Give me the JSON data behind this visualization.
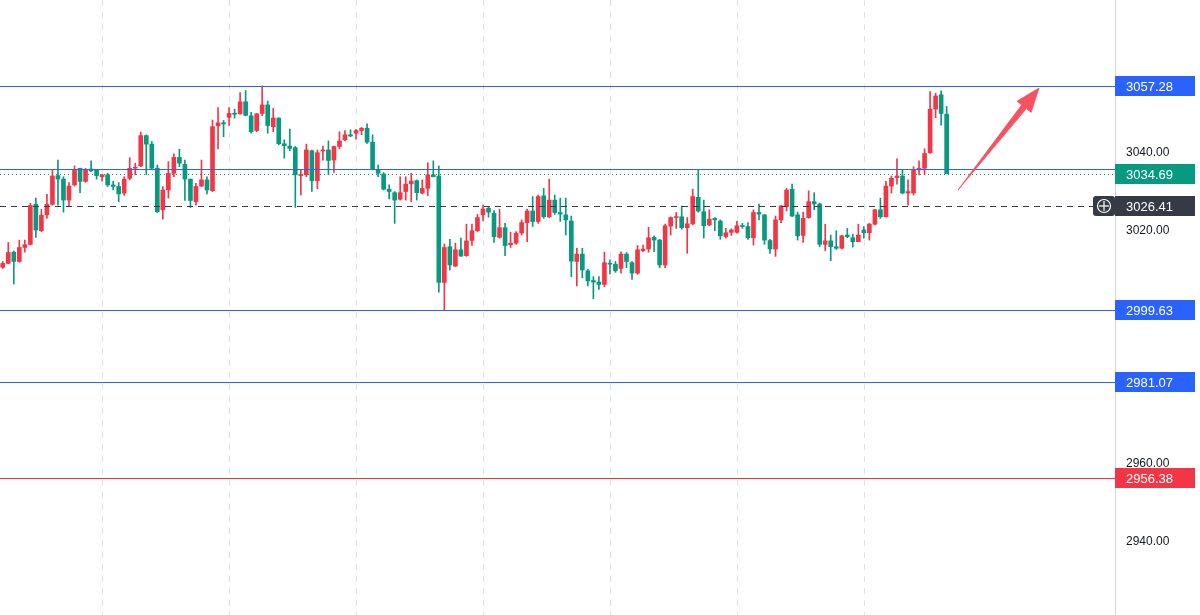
{
  "chart_data": {
    "type": "candlestick",
    "categories": [
      null,
      null,
      null,
      null,
      null,
      null,
      null,
      null,
      null,
      null,
      null,
      null,
      null,
      null,
      null,
      null,
      null,
      null,
      null,
      null,
      null,
      null,
      null,
      null,
      null,
      null,
      null,
      null,
      null,
      null,
      null,
      null,
      null,
      null,
      null,
      null,
      null,
      null,
      null,
      null,
      null,
      null,
      null,
      null,
      null,
      null,
      null,
      null,
      null,
      null,
      null,
      null,
      null,
      null,
      null,
      null,
      null,
      null,
      null,
      null,
      null,
      null,
      null,
      null,
      null,
      null,
      null,
      null,
      null,
      null,
      null,
      null,
      null,
      null,
      null,
      null,
      null,
      null,
      null,
      null,
      null,
      null,
      null,
      null,
      null,
      null,
      null,
      null,
      null,
      null,
      null,
      null,
      null,
      null,
      null,
      null,
      null,
      null,
      null,
      null,
      null,
      null,
      null,
      null,
      null,
      null,
      null,
      null,
      null,
      null,
      null,
      null,
      null,
      null,
      null,
      null,
      null,
      null,
      null,
      null,
      null,
      null,
      null,
      null,
      null,
      null,
      null,
      null,
      null,
      null,
      null,
      null,
      null,
      null,
      null,
      null,
      null,
      null,
      null,
      null,
      null,
      null,
      null,
      null,
      null,
      null,
      null,
      null,
      null,
      null,
      null,
      null,
      null,
      null,
      null,
      null,
      null,
      null,
      null,
      null,
      null,
      null,
      null,
      null,
      null,
      null,
      null,
      null,
      null,
      null,
      null,
      null,
      null,
      null,
      null,
      null,
      null,
      null,
      null,
      null,
      null,
      null,
      null,
      null,
      null,
      null,
      null,
      null,
      null,
      null,
      null,
      null,
      null,
      null,
      null,
      null,
      null,
      null,
      null,
      null,
      null,
      null
    ],
    "ohlc": [
      [
        3010.6,
        3012.1,
        3010.3,
        3011.6
      ],
      [
        3011.6,
        3017.0,
        3011.5,
        3014.4
      ],
      [
        3014.5,
        3014.8,
        3006.3,
        3012.1
      ],
      [
        3012.1,
        3017.6,
        3011.9,
        3015.7
      ],
      [
        3015.7,
        3017.6,
        3014.5,
        3016.4
      ],
      [
        3016.5,
        3027.1,
        3016.3,
        3026.5
      ],
      [
        3026.8,
        3028.4,
        3018.3,
        3020.2
      ],
      [
        3020.0,
        3025.5,
        3019.8,
        3024.0
      ],
      [
        3024.1,
        3029.4,
        3023.2,
        3026.8
      ],
      [
        3026.8,
        3035.7,
        3026.6,
        3034.1
      ],
      [
        3034.2,
        3038.2,
        3026.6,
        3033.3
      ],
      [
        3033.3,
        3033.9,
        3024.8,
        3027.9
      ],
      [
        3027.9,
        3032.4,
        3026.4,
        3031.5
      ],
      [
        3031.8,
        3036.7,
        3031.5,
        3035.7
      ],
      [
        3036.1,
        3036.1,
        3029.8,
        3032.7
      ],
      [
        3032.7,
        3036.1,
        3032.5,
        3035.8
      ],
      [
        3035.9,
        3038.0,
        3035.2,
        3035.4
      ],
      [
        3035.7,
        3035.8,
        3033.3,
        3034.2
      ],
      [
        3033.9,
        3034.5,
        3032.8,
        3034.4
      ],
      [
        3034.4,
        3034.8,
        3031.4,
        3031.8
      ],
      [
        3031.8,
        3032.7,
        3030.5,
        3031.4
      ],
      [
        3031.4,
        3032.4,
        3027.5,
        3029.5
      ],
      [
        3029.7,
        3033.9,
        3029.1,
        3033.3
      ],
      [
        3033.5,
        3038.8,
        3033.1,
        3036.1
      ],
      [
        3036.1,
        3037.4,
        3034.4,
        3036.3
      ],
      [
        3036.7,
        3045.4,
        3036.5,
        3044.5
      ],
      [
        3044.5,
        3044.7,
        3034.5,
        3042.3
      ],
      [
        3042.3,
        3043.0,
        3035.9,
        3036.1
      ],
      [
        3036.1,
        3036.9,
        3024.7,
        3024.9
      ],
      [
        3025.4,
        3031.4,
        3023.0,
        3030.5
      ],
      [
        3030.5,
        3037.8,
        3028.4,
        3034.8
      ],
      [
        3034.8,
        3039.8,
        3033.9,
        3038.9
      ],
      [
        3038.9,
        3041.0,
        3036.5,
        3037.4
      ],
      [
        3037.1,
        3038.2,
        3027.8,
        3033.3
      ],
      [
        3033.3,
        3033.3,
        3026.0,
        3027.8
      ],
      [
        3027.5,
        3032.2,
        3026.6,
        3031.4
      ],
      [
        3031.5,
        3038.2,
        3031.4,
        3033.1
      ],
      [
        3033.1,
        3033.9,
        3029.5,
        3030.5
      ],
      [
        3030.3,
        3048.5,
        3030.1,
        3046.8
      ],
      [
        3047.0,
        3051.7,
        3041.1,
        3047.8
      ],
      [
        3047.8,
        3048.4,
        3044.2,
        3047.5
      ],
      [
        3049.2,
        3051.7,
        3047.1,
        3050.2
      ],
      [
        3050.2,
        3051.3,
        3049.0,
        3050.0
      ],
      [
        3050.1,
        3055.6,
        3050.0,
        3053.2
      ],
      [
        3053.2,
        3056.1,
        3049.6,
        3049.7
      ],
      [
        3049.6,
        3050.5,
        3045.1,
        3045.5
      ],
      [
        3045.8,
        3050.2,
        3045.5,
        3050.1
      ],
      [
        3050.2,
        3057.3,
        3049.6,
        3052.4
      ],
      [
        3052.4,
        3053.4,
        3045.1,
        3047.1
      ],
      [
        3046.8,
        3051.5,
        3045.5,
        3049.0
      ],
      [
        3049.0,
        3049.1,
        3042.1,
        3042.4
      ],
      [
        3042.4,
        3043.4,
        3038.7,
        3041.9
      ],
      [
        3041.8,
        3046.2,
        3040.6,
        3041.2
      ],
      [
        3041.4,
        3041.7,
        3026.0,
        3034.4
      ],
      [
        3034.2,
        3035.7,
        3029.2,
        3034.5
      ],
      [
        3034.4,
        3042.3,
        3033.9,
        3040.8
      ],
      [
        3040.6,
        3040.8,
        3030.1,
        3032.9
      ],
      [
        3032.9,
        3040.8,
        3030.8,
        3040.1
      ],
      [
        3040.5,
        3041.8,
        3038.2,
        3040.8
      ],
      [
        3040.8,
        3043.1,
        3034.4,
        3038.1
      ],
      [
        3038.2,
        3041.8,
        3035.0,
        3041.7
      ],
      [
        3041.7,
        3045.5,
        3041.1,
        3043.1
      ],
      [
        3043.4,
        3045.8,
        3043.1,
        3044.7
      ],
      [
        3044.7,
        3046.0,
        3044.2,
        3044.4
      ],
      [
        3045.1,
        3046.1,
        3043.6,
        3045.8
      ],
      [
        3045.8,
        3046.6,
        3044.7,
        3046.4
      ],
      [
        3046.4,
        3047.5,
        3042.5,
        3042.8
      ],
      [
        3042.8,
        3044.7,
        3035.7,
        3035.8
      ],
      [
        3035.8,
        3036.9,
        3033.9,
        3034.8
      ],
      [
        3034.6,
        3035.0,
        3030.5,
        3030.7
      ],
      [
        3030.7,
        3031.8,
        3028.2,
        3030.1
      ],
      [
        3029.8,
        3030.1,
        3021.9,
        3027.9
      ],
      [
        3028.1,
        3033.9,
        3027.9,
        3029.8
      ],
      [
        3030.1,
        3033.9,
        3027.9,
        3032.0
      ],
      [
        3032.1,
        3034.8,
        3027.5,
        3032.8
      ],
      [
        3032.9,
        3033.1,
        3027.9,
        3029.8
      ],
      [
        3029.7,
        3033.1,
        3029.5,
        3030.9
      ],
      [
        3030.9,
        3037.5,
        3029.0,
        3034.4
      ],
      [
        3034.4,
        3038.0,
        3033.9,
        3033.9
      ],
      [
        3034.1,
        3036.7,
        3004.2,
        3006.7
      ],
      [
        3006.7,
        3016.6,
        2999.6,
        3015.7
      ],
      [
        3015.9,
        3017.8,
        3009.9,
        3011.2
      ],
      [
        3010.9,
        3016.8,
        3010.8,
        3015.1
      ],
      [
        3015.1,
        3018.1,
        3013.4,
        3013.5
      ],
      [
        3013.6,
        3021.7,
        3013.4,
        3017.4
      ],
      [
        3017.5,
        3021.7,
        3016.2,
        3020.0
      ],
      [
        3020.0,
        3024.2,
        3019.8,
        3023.4
      ],
      [
        3024.1,
        3026.6,
        3022.6,
        3025.6
      ],
      [
        3025.8,
        3026.2,
        3023.5,
        3024.8
      ],
      [
        3024.5,
        3025.2,
        3017.0,
        3018.5
      ],
      [
        3018.3,
        3025.5,
        3018.1,
        3020.8
      ],
      [
        3020.8,
        3021.9,
        3013.6,
        3016.2
      ],
      [
        3016.4,
        3019.6,
        3015.7,
        3016.8
      ],
      [
        3016.8,
        3019.8,
        3016.5,
        3019.4
      ],
      [
        3019.4,
        3022.8,
        3018.9,
        3022.1
      ],
      [
        3022.1,
        3025.5,
        3017.2,
        3025.1
      ],
      [
        3025.1,
        3028.8,
        3021.1,
        3022.4
      ],
      [
        3022.4,
        3029.2,
        3021.9,
        3028.8
      ],
      [
        3029.0,
        3030.9,
        3023.2,
        3023.6
      ],
      [
        3023.6,
        3033.3,
        3023.4,
        3027.9
      ],
      [
        3027.9,
        3029.2,
        3024.2,
        3024.7
      ],
      [
        3024.7,
        3028.4,
        3022.4,
        3024.3
      ],
      [
        3024.1,
        3028.4,
        3018.9,
        3022.8
      ],
      [
        3022.5,
        3023.8,
        3008.2,
        3012.2
      ],
      [
        3012.1,
        3015.5,
        3005.8,
        3014.0
      ],
      [
        3014.0,
        3015.5,
        3007.9,
        3009.9
      ],
      [
        3009.7,
        3010.1,
        3005.8,
        3007.1
      ],
      [
        3007.2,
        3008.2,
        3002.5,
        3006.8
      ],
      [
        3006.8,
        3008.2,
        3004.9,
        3006.2
      ],
      [
        3006.2,
        3014.5,
        3005.6,
        3011.8
      ],
      [
        3011.6,
        3012.5,
        3008.9,
        3011.4
      ],
      [
        3011.4,
        3012.1,
        3009.3,
        3009.7
      ],
      [
        3010.3,
        3014.6,
        3009.1,
        3014.0
      ],
      [
        3014.0,
        3014.4,
        3010.5,
        3012.1
      ],
      [
        3011.8,
        3012.1,
        3007.5,
        3009.1
      ],
      [
        3009.1,
        3016.2,
        3008.8,
        3015.1
      ],
      [
        3014.9,
        3016.3,
        3014.6,
        3015.3
      ],
      [
        3015.3,
        3020.9,
        3014.5,
        3018.2
      ],
      [
        3018.3,
        3018.7,
        3014.6,
        3017.6
      ],
      [
        3017.6,
        3017.8,
        3010.5,
        3011.2
      ],
      [
        3011.2,
        3021.7,
        3010.5,
        3021.3
      ],
      [
        3021.2,
        3023.6,
        3018.9,
        3023.4
      ],
      [
        3023.4,
        3024.7,
        3020.6,
        3023.6
      ],
      [
        3023.6,
        3026.4,
        3020.4,
        3020.8
      ],
      [
        3020.8,
        3023.4,
        3014.2,
        3021.8
      ],
      [
        3021.8,
        3030.7,
        3021.5,
        3028.8
      ],
      [
        3028.6,
        3035.8,
        3024.8,
        3025.1
      ],
      [
        3024.9,
        3027.9,
        3018.1,
        3021.3
      ],
      [
        3021.5,
        3025.4,
        3021.3,
        3023.0
      ],
      [
        3023.2,
        3023.4,
        3020.0,
        3022.8
      ],
      [
        3022.5,
        3022.8,
        3017.8,
        3018.7
      ],
      [
        3018.5,
        3020.6,
        3018.1,
        3019.5
      ],
      [
        3019.6,
        3020.5,
        3018.8,
        3020.2
      ],
      [
        3019.6,
        3022.4,
        3019.4,
        3021.3
      ],
      [
        3021.3,
        3021.9,
        3020.6,
        3021.1
      ],
      [
        3021.1,
        3022.1,
        3017.8,
        3018.2
      ],
      [
        3018.2,
        3025.4,
        3016.3,
        3024.7
      ],
      [
        3024.7,
        3026.9,
        3022.8,
        3024.3
      ],
      [
        3024.1,
        3024.2,
        3016.5,
        3017.6
      ],
      [
        3017.5,
        3017.8,
        3014.2,
        3015.3
      ],
      [
        3015.3,
        3023.8,
        3013.4,
        3022.8
      ],
      [
        3022.8,
        3026.5,
        3022.1,
        3026.4
      ],
      [
        3026.2,
        3030.9,
        3025.1,
        3030.5
      ],
      [
        3030.7,
        3032.0,
        3023.6,
        3023.8
      ],
      [
        3024.1,
        3024.8,
        3017.6,
        3018.7
      ],
      [
        3018.8,
        3024.8,
        3017.0,
        3023.2
      ],
      [
        3023.4,
        3030.3,
        3023.2,
        3027.5
      ],
      [
        3027.5,
        3029.8,
        3025.4,
        3026.9
      ],
      [
        3026.9,
        3027.1,
        3015.9,
        3016.5
      ],
      [
        3016.5,
        3021.7,
        3014.9,
        3017.4
      ],
      [
        3017.4,
        3018.9,
        3012.3,
        3015.9
      ],
      [
        3015.9,
        3020.0,
        3015.2,
        3015.5
      ],
      [
        3015.5,
        3018.9,
        3015.3,
        3018.7
      ],
      [
        3018.9,
        3020.6,
        3018.2,
        3018.5
      ],
      [
        3018.2,
        3019.1,
        3015.8,
        3017.2
      ],
      [
        3017.2,
        3021.7,
        3017.2,
        3018.9
      ],
      [
        3020.2,
        3021.1,
        3018.1,
        3019.5
      ],
      [
        3019.5,
        3021.9,
        3017.6,
        3021.7
      ],
      [
        3021.7,
        3025.5,
        3021.5,
        3025.4
      ],
      [
        3025.4,
        3028.4,
        3023.2,
        3023.6
      ],
      [
        3023.6,
        3032.7,
        3023.5,
        3031.5
      ],
      [
        3031.5,
        3034.1,
        3029.7,
        3033.5
      ],
      [
        3033.7,
        3038.5,
        3032.0,
        3034.1
      ],
      [
        3034.1,
        3035.7,
        3029.5,
        3029.7
      ],
      [
        3029.7,
        3033.1,
        3026.6,
        3030.1
      ],
      [
        3029.7,
        3036.5,
        3029.2,
        3035.7
      ],
      [
        3035.7,
        3038.0,
        3034.4,
        3036.1
      ],
      [
        3036.1,
        3041.1,
        3034.4,
        3039.9
      ],
      [
        3040.1,
        3055.8,
        3039.9,
        3051.3
      ],
      [
        3051.3,
        3055.4,
        3049.1,
        3054.7
      ],
      [
        3055.0,
        3056.0,
        3047.2,
        3050.2
      ],
      [
        3050.0,
        3052.0,
        3034.69,
        3034.69
      ],
      null,
      null,
      null,
      null,
      null,
      null,
      null,
      null,
      null,
      null,
      null,
      null,
      null,
      null,
      null,
      null,
      null,
      null,
      null,
      null,
      null,
      null,
      null,
      null,
      null,
      null,
      null,
      null,
      null,
      null
    ],
    "colors": [
      "#f23645",
      "#f23645",
      "#089981",
      "#f23645",
      "#f23645",
      "#f23645",
      "#089981",
      "#f23645",
      "#f23645",
      "#f23645",
      "#089981",
      "#089981",
      "#f23645",
      "#f23645",
      "#089981",
      "#f23645",
      "#089981",
      "#089981",
      "#f23645",
      "#089981",
      "#089981",
      "#089981",
      "#f23645",
      "#f23645",
      "#f23645",
      "#f23645",
      "#089981",
      "#089981",
      "#089981",
      "#f23645",
      "#f23645",
      "#f23645",
      "#089981",
      "#089981",
      "#089981",
      "#f23645",
      "#f23645",
      "#089981",
      "#f23645",
      "#f23645",
      "#089981",
      "#f23645",
      "#089981",
      "#f23645",
      "#089981",
      "#089981",
      "#f23645",
      "#f23645",
      "#089981",
      "#f23645",
      "#089981",
      "#089981",
      "#089981",
      "#089981",
      "#f23645",
      "#f23645",
      "#089981",
      "#f23645",
      "#f23645",
      "#089981",
      "#f23645",
      "#f23645",
      "#f23645",
      "#089981",
      "#f23645",
      "#f23645",
      "#089981",
      "#089981",
      "#089981",
      "#089981",
      "#089981",
      "#089981",
      "#f23645",
      "#f23645",
      "#f23645",
      "#089981",
      "#f23645",
      "#f23645",
      "#089981",
      "#089981",
      "#f23645",
      "#089981",
      "#f23645",
      "#089981",
      "#f23645",
      "#f23645",
      "#f23645",
      "#f23645",
      "#089981",
      "#089981",
      "#f23645",
      "#089981",
      "#f23645",
      "#f23645",
      "#f23645",
      "#f23645",
      "#089981",
      "#f23645",
      "#089981",
      "#f23645",
      "#089981",
      "#089981",
      "#089981",
      "#089981",
      "#f23645",
      "#089981",
      "#089981",
      "#089981",
      "#089981",
      "#f23645",
      "#089981",
      "#089981",
      "#f23645",
      "#089981",
      "#089981",
      "#f23645",
      "#f23645",
      "#f23645",
      "#089981",
      "#089981",
      "#f23645",
      "#f23645",
      "#f23645",
      "#089981",
      "#f23645",
      "#f23645",
      "#089981",
      "#089981",
      "#f23645",
      "#089981",
      "#089981",
      "#f23645",
      "#f23645",
      "#f23645",
      "#089981",
      "#089981",
      "#f23645",
      "#089981",
      "#089981",
      "#089981",
      "#f23645",
      "#f23645",
      "#f23645",
      "#089981",
      "#089981",
      "#f23645",
      "#f23645",
      "#089981",
      "#089981",
      "#f23645",
      "#089981",
      "#089981",
      "#f23645",
      "#089981",
      "#089981",
      "#f23645",
      "#089981",
      "#f23645",
      "#f23645",
      "#089981",
      "#f23645",
      "#f23645",
      "#f23645",
      "#089981",
      "#f23645",
      "#f23645",
      "#f23645",
      "#f23645",
      "#f23645",
      "#f23645",
      "#089981",
      "#089981",
      null,
      null,
      null,
      null,
      null,
      null,
      null,
      null,
      null,
      null,
      null,
      null,
      null,
      null,
      null,
      null,
      null,
      null,
      null,
      null,
      null,
      null,
      null,
      null,
      null,
      null,
      null,
      null,
      null,
      null
    ],
    "ylim": [
      2921.1,
      3079.4
    ],
    "yticks": [
      {
        "value": 2940,
        "label": "2940.00"
      },
      {
        "value": 2960,
        "label": "2960.00"
      },
      {
        "value": 3020,
        "label": "3020.00"
      },
      {
        "value": 3040,
        "label": "3040.00"
      }
    ],
    "tick_labels": "y",
    "grid": "x",
    "ref_lines": [
      {
        "axis": "y",
        "value": 3057.28,
        "label": "3057.28",
        "color": "#2962ff",
        "line_style": "solid"
      },
      {
        "axis": "y",
        "value": 3035.9,
        "color": "#2962ff",
        "line_style": "solid"
      },
      {
        "axis": "y",
        "value": 3034.69,
        "label": "3034.69",
        "color": "#089981",
        "line_style": "dotted"
      },
      {
        "axis": "y",
        "value": 3026.41,
        "label": "3026.41",
        "color": "#363a45",
        "line_style": "dashed"
      },
      {
        "axis": "y",
        "value": 2999.63,
        "label": "2999.63",
        "color": "#2962ff",
        "line_style": "solid"
      },
      {
        "axis": "y",
        "value": 2981.07,
        "label": "2981.07",
        "color": "#2962ff",
        "line_style": "solid"
      },
      {
        "axis": "y",
        "value": 2956.38,
        "label": "2956.38",
        "color": "#f23645",
        "line_style": "solid"
      }
    ]
  }
}
